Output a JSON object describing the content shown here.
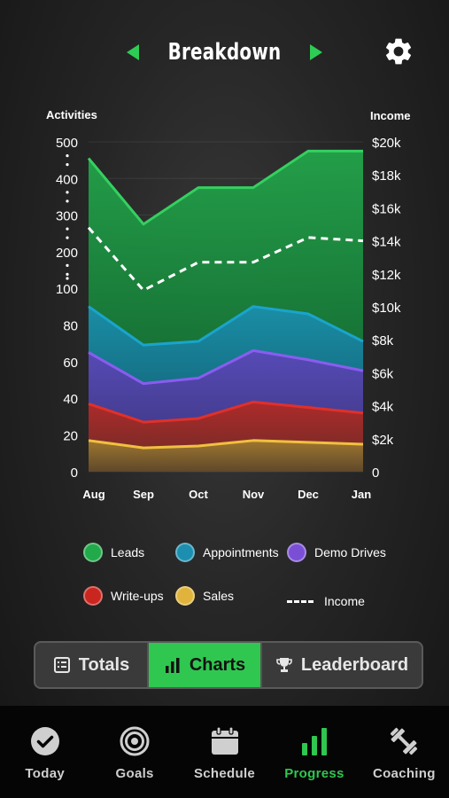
{
  "header": {
    "title": "Breakdown",
    "prev_icon": "arrow-left-icon",
    "next_icon": "arrow-right-icon",
    "settings_icon": "gear-icon"
  },
  "colors": {
    "accent": "#2fc750",
    "leads": "#22a94a",
    "appointments": "#1c8fb0",
    "demo_drives": "#7a4fd6",
    "write_ups": "#c9261f",
    "sales": "#e0b43c"
  },
  "chart_data": {
    "type": "area",
    "x": [
      "Aug",
      "Sep",
      "Oct",
      "Nov",
      "Dec",
      "Jan"
    ],
    "left_axis": {
      "label": "Activities",
      "ticks": [
        "0",
        "20",
        "40",
        "60",
        "80",
        "100",
        "200",
        "300",
        "400",
        "500"
      ],
      "scale": "piecewise"
    },
    "right_axis": {
      "label": "Income",
      "ticks": [
        "0",
        "$2k",
        "$4k",
        "$6k",
        "$8k",
        "$10k",
        "$12k",
        "$14k",
        "$16k",
        "$18k",
        "$20k"
      ],
      "ylim": [
        0,
        20000
      ]
    },
    "series": [
      {
        "name": "Leads",
        "values": [
          455,
          275,
          375,
          375,
          475,
          475
        ]
      },
      {
        "name": "Appointments",
        "values": [
          90,
          69,
          71,
          90,
          86,
          71
        ]
      },
      {
        "name": "Demo Drives",
        "values": [
          65,
          48,
          51,
          66,
          61,
          55
        ]
      },
      {
        "name": "Write-ups",
        "values": [
          37,
          27,
          29,
          38,
          35,
          32
        ]
      },
      {
        "name": "Sales",
        "values": [
          17,
          13,
          14,
          17,
          16,
          15
        ]
      },
      {
        "name": "Income",
        "values": [
          14800,
          11000,
          12700,
          12700,
          14200,
          14000
        ],
        "style": "dashed",
        "axis": "right"
      }
    ],
    "grid": true,
    "legend_position": "bottom"
  },
  "tabs": [
    {
      "label": "Totals",
      "icon": "list-icon",
      "active": false
    },
    {
      "label": "Charts",
      "icon": "bar-chart-icon",
      "active": true
    },
    {
      "label": "Leaderboard",
      "icon": "trophy-icon",
      "active": false
    }
  ],
  "nav": [
    {
      "label": "Today",
      "icon": "check-circle-icon",
      "active": false
    },
    {
      "label": "Goals",
      "icon": "target-icon",
      "active": false
    },
    {
      "label": "Schedule",
      "icon": "calendar-icon",
      "active": false
    },
    {
      "label": "Progress",
      "icon": "bar-chart-icon",
      "active": true
    },
    {
      "label": "Coaching",
      "icon": "dumbbell-icon",
      "active": false
    }
  ]
}
